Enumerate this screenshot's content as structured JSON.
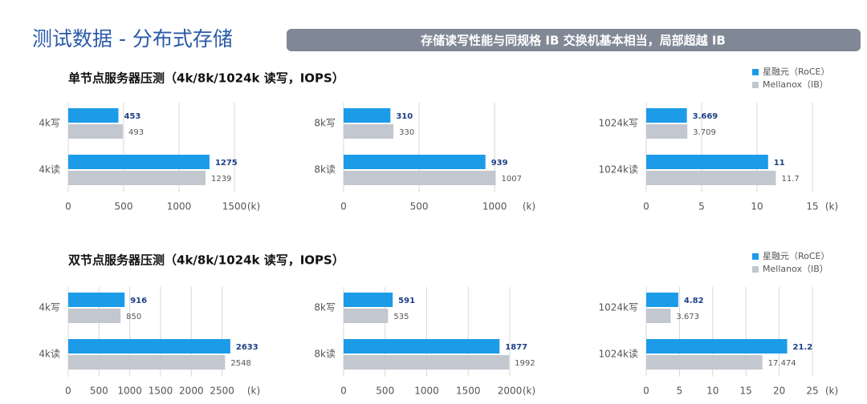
{
  "header": {
    "title": "测试数据 - 分布式存储",
    "banner": "存储读写性能与同规格 IB 交换机基本相当，局部超越 IB"
  },
  "sections": [
    {
      "title": "单节点服务器压测（4k/8k/1024k 读写，IOPS）"
    },
    {
      "title": "双节点服务器压测（4k/8k/1024k 读写，IOPS）"
    }
  ],
  "chart_data": [
    {
      "type": "bar",
      "orientation": "horizontal",
      "categories": [
        "4k写",
        "4k读"
      ],
      "series": [
        {
          "name": "星融元（RoCE）",
          "color": "#1c9be8",
          "values": [
            453,
            1275
          ]
        },
        {
          "name": "Mellanox（IB）",
          "color": "#c3c7cf",
          "values": [
            493,
            1239
          ]
        }
      ],
      "xlim": [
        0,
        1500
      ],
      "xticks": [
        0,
        500,
        1000,
        1500
      ],
      "xlabel": "(k)",
      "grid": true
    },
    {
      "type": "bar",
      "orientation": "horizontal",
      "categories": [
        "8k写",
        "8k读"
      ],
      "series": [
        {
          "name": "星融元（RoCE）",
          "color": "#1c9be8",
          "values": [
            310,
            939
          ]
        },
        {
          "name": "Mellanox（IB）",
          "color": "#c3c7cf",
          "values": [
            330,
            1007
          ]
        }
      ],
      "xlim": [
        0,
        1100
      ],
      "xticks": [
        0,
        500,
        1000
      ],
      "xlabel": "(k)",
      "grid": true
    },
    {
      "type": "bar",
      "orientation": "horizontal",
      "categories": [
        "1024k写",
        "1024k读"
      ],
      "series": [
        {
          "name": "星融元（RoCE）",
          "color": "#1c9be8",
          "values": [
            3.669,
            11
          ]
        },
        {
          "name": "Mellanox（IB）",
          "color": "#c3c7cf",
          "values": [
            3.709,
            11.7
          ]
        }
      ],
      "xlim": [
        0,
        15
      ],
      "xticks": [
        0,
        5,
        10,
        15
      ],
      "xlabel": "(k)",
      "grid": true,
      "legend": "top-right"
    },
    {
      "type": "bar",
      "orientation": "horizontal",
      "categories": [
        "4k写",
        "4k读"
      ],
      "series": [
        {
          "name": "星融元（RoCE）",
          "color": "#1c9be8",
          "values": [
            916,
            2633
          ]
        },
        {
          "name": "Mellanox（IB）",
          "color": "#c3c7cf",
          "values": [
            850,
            2548
          ]
        }
      ],
      "xlim": [
        0,
        2700
      ],
      "xticks": [
        0,
        500,
        1000,
        1500,
        2000,
        2500
      ],
      "xlabel": "(k)",
      "grid": true
    },
    {
      "type": "bar",
      "orientation": "horizontal",
      "categories": [
        "8k写",
        "8k读"
      ],
      "series": [
        {
          "name": "星融元（RoCE）",
          "color": "#1c9be8",
          "values": [
            591,
            1877
          ]
        },
        {
          "name": "Mellanox（IB）",
          "color": "#c3c7cf",
          "values": [
            535,
            1992
          ]
        }
      ],
      "xlim": [
        0,
        2000
      ],
      "xticks": [
        0,
        500,
        1000,
        1500,
        2000
      ],
      "xlabel": "(k)",
      "grid": true
    },
    {
      "type": "bar",
      "orientation": "horizontal",
      "categories": [
        "1024k写",
        "1024k读"
      ],
      "series": [
        {
          "name": "星融元（RoCE）",
          "color": "#1c9be8",
          "values": [
            4.82,
            21.2
          ]
        },
        {
          "name": "Mellanox（IB）",
          "color": "#c3c7cf",
          "values": [
            3.673,
            17.474
          ]
        }
      ],
      "xlim": [
        0,
        25
      ],
      "xticks": [
        0,
        5,
        10,
        15,
        20,
        25
      ],
      "xlabel": "(k)",
      "grid": true,
      "legend": "top-right"
    }
  ]
}
